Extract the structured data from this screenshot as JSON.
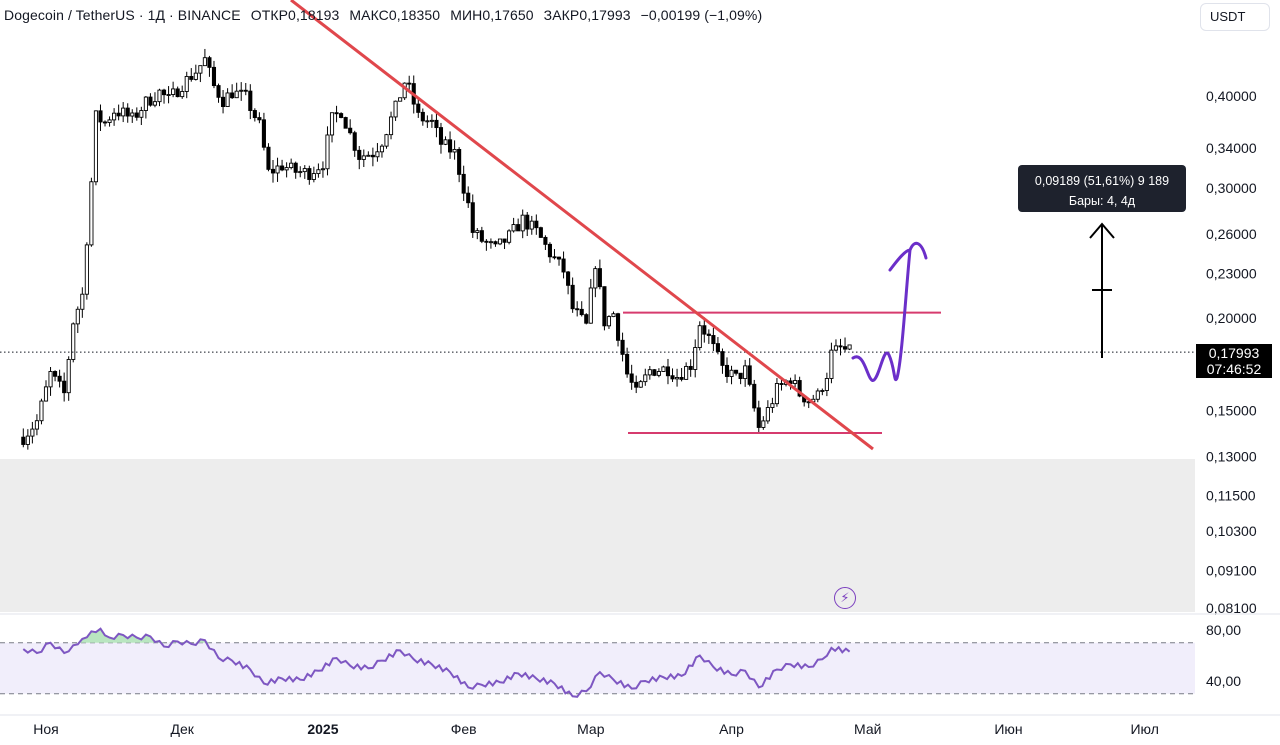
{
  "header": {
    "symbol": "Dogecoin / TetherUS · 1Д · BINANCE",
    "open": "ОТКР0,18193",
    "high": "МАКС0,18350",
    "low": "МИН0,17650",
    "close": "ЗАКР0,17993",
    "change": "−0,00199 (−1,09%)"
  },
  "currency_button": "USDT",
  "price_tag": {
    "price": "0,17993",
    "countdown": "07:46:52"
  },
  "measure": {
    "line1": "0,09189 (51,61%) 9 189",
    "line2": "Бары: 4, 4д"
  },
  "flash_icon": "lightning-icon",
  "colors": {
    "up": "#000000",
    "down": "#000000",
    "trendline": "#e0474c",
    "range_lines": "#d63b6e",
    "projection": "#6b2fc9",
    "rsi_line": "#7e57c2",
    "rsi_fill": "#f1eefb"
  },
  "chart_data": [
    {
      "type": "candlestick",
      "scale": "log",
      "y_axis_ticks": [
        "0,40000",
        "0,34000",
        "0,30000",
        "0,26000",
        "0,23000",
        "0,20000",
        "0,15000",
        "0,13000",
        "0,11500",
        "0,10300",
        "0,09100",
        "0,08100"
      ],
      "y_tick_values": [
        0.4,
        0.34,
        0.3,
        0.26,
        0.23,
        0.2,
        0.15,
        0.13,
        0.115,
        0.103,
        0.091,
        0.081
      ],
      "x_axis_ticks": [
        "Ноя",
        "Дек",
        "2025",
        "Фев",
        "Мар",
        "Апр",
        "Май",
        "Июн",
        "Июл"
      ],
      "x_tick_dates": [
        "2024-11-01",
        "2024-12-01",
        "2025-01-01",
        "2025-02-01",
        "2025-03-01",
        "2025-04-01",
        "2025-05-01",
        "2025-06-01",
        "2025-07-01"
      ],
      "close_series": [
        [
          "2024-10-27",
          0.138
        ],
        [
          "2024-10-30",
          0.145
        ],
        [
          "2024-11-02",
          0.168
        ],
        [
          "2024-11-05",
          0.158
        ],
        [
          "2024-11-07",
          0.198
        ],
        [
          "2024-11-09",
          0.215
        ],
        [
          "2024-11-11",
          0.306
        ],
        [
          "2024-11-12",
          0.375
        ],
        [
          "2024-11-14",
          0.368
        ],
        [
          "2024-11-16",
          0.382
        ],
        [
          "2024-11-18",
          0.379
        ],
        [
          "2024-11-20",
          0.372
        ],
        [
          "2024-11-23",
          0.392
        ],
        [
          "2024-11-26",
          0.405
        ],
        [
          "2024-11-28",
          0.395
        ],
        [
          "2024-12-01",
          0.415
        ],
        [
          "2024-12-04",
          0.432
        ],
        [
          "2024-12-06",
          0.448
        ],
        [
          "2024-12-08",
          0.412
        ],
        [
          "2024-12-10",
          0.395
        ],
        [
          "2024-12-12",
          0.405
        ],
        [
          "2024-12-15",
          0.398
        ],
        [
          "2024-12-18",
          0.365
        ],
        [
          "2024-12-20",
          0.315
        ],
        [
          "2024-12-23",
          0.322
        ],
        [
          "2024-12-26",
          0.316
        ],
        [
          "2024-12-29",
          0.315
        ],
        [
          "2025-01-01",
          0.325
        ],
        [
          "2025-01-03",
          0.372
        ],
        [
          "2025-01-05",
          0.382
        ],
        [
          "2025-01-07",
          0.355
        ],
        [
          "2025-01-09",
          0.332
        ],
        [
          "2025-01-12",
          0.335
        ],
        [
          "2025-01-14",
          0.348
        ],
        [
          "2025-01-17",
          0.385
        ],
        [
          "2025-01-19",
          0.418
        ],
        [
          "2025-01-20",
          0.408
        ],
        [
          "2025-01-22",
          0.375
        ],
        [
          "2025-01-25",
          0.368
        ],
        [
          "2025-01-27",
          0.345
        ],
        [
          "2025-01-30",
          0.335
        ],
        [
          "2025-02-02",
          0.285
        ],
        [
          "2025-02-03",
          0.262
        ],
        [
          "2025-02-05",
          0.255
        ],
        [
          "2025-02-08",
          0.248
        ],
        [
          "2025-02-11",
          0.258
        ],
        [
          "2025-02-14",
          0.272
        ],
        [
          "2025-02-17",
          0.262
        ],
        [
          "2025-02-20",
          0.245
        ],
        [
          "2025-02-23",
          0.232
        ],
        [
          "2025-02-25",
          0.206
        ],
        [
          "2025-02-28",
          0.195
        ],
        [
          "2025-03-02",
          0.238
        ],
        [
          "2025-03-04",
          0.198
        ],
        [
          "2025-03-06",
          0.203
        ],
        [
          "2025-03-09",
          0.168
        ],
        [
          "2025-03-11",
          0.158
        ],
        [
          "2025-03-14",
          0.17
        ],
        [
          "2025-03-18",
          0.171
        ],
        [
          "2025-03-20",
          0.167
        ],
        [
          "2025-03-23",
          0.173
        ],
        [
          "2025-03-25",
          0.197
        ],
        [
          "2025-03-27",
          0.188
        ],
        [
          "2025-03-30",
          0.171
        ],
        [
          "2025-04-02",
          0.166
        ],
        [
          "2025-04-04",
          0.17
        ],
        [
          "2025-04-07",
          0.142
        ],
        [
          "2025-04-09",
          0.15
        ],
        [
          "2025-04-11",
          0.16
        ],
        [
          "2025-04-14",
          0.166
        ],
        [
          "2025-04-16",
          0.158
        ],
        [
          "2025-04-18",
          0.155
        ],
        [
          "2025-04-20",
          0.157
        ],
        [
          "2025-04-22",
          0.168
        ],
        [
          "2025-04-23",
          0.179
        ],
        [
          "2025-04-25",
          0.182
        ],
        [
          "2025-04-27",
          0.18
        ]
      ],
      "horizontal_levels": [
        0.2035,
        0.1398
      ],
      "current_price": 0.17993
    },
    {
      "type": "line",
      "name": "RSI",
      "y_axis_ticks": [
        "80,00",
        "40,00"
      ],
      "band": [
        70,
        30
      ],
      "values": [
        [
          "2024-10-27",
          65
        ],
        [
          "2024-10-30",
          62
        ],
        [
          "2024-11-02",
          70
        ],
        [
          "2024-11-05",
          62
        ],
        [
          "2024-11-07",
          68
        ],
        [
          "2024-11-09",
          73
        ],
        [
          "2024-11-11",
          79
        ],
        [
          "2024-11-13",
          81
        ],
        [
          "2024-11-15",
          74
        ],
        [
          "2024-11-18",
          76
        ],
        [
          "2024-11-21",
          74
        ],
        [
          "2024-11-24",
          75
        ],
        [
          "2024-11-27",
          67
        ],
        [
          "2024-11-30",
          71
        ],
        [
          "2024-12-03",
          69
        ],
        [
          "2024-12-06",
          72
        ],
        [
          "2024-12-09",
          58
        ],
        [
          "2024-12-12",
          56
        ],
        [
          "2024-12-16",
          49
        ],
        [
          "2024-12-19",
          38
        ],
        [
          "2024-12-23",
          42
        ],
        [
          "2024-12-27",
          41
        ],
        [
          "2024-12-31",
          48
        ],
        [
          "2025-01-04",
          58
        ],
        [
          "2025-01-07",
          52
        ],
        [
          "2025-01-11",
          50
        ],
        [
          "2025-01-14",
          56
        ],
        [
          "2025-01-18",
          64
        ],
        [
          "2025-01-21",
          57
        ],
        [
          "2025-01-25",
          53
        ],
        [
          "2025-01-29",
          47
        ],
        [
          "2025-02-02",
          35
        ],
        [
          "2025-02-05",
          37
        ],
        [
          "2025-02-09",
          39
        ],
        [
          "2025-02-13",
          46
        ],
        [
          "2025-02-17",
          42
        ],
        [
          "2025-02-21",
          38
        ],
        [
          "2025-02-25",
          28
        ],
        [
          "2025-02-28",
          32
        ],
        [
          "2025-03-03",
          47
        ],
        [
          "2025-03-06",
          41
        ],
        [
          "2025-03-10",
          34
        ],
        [
          "2025-03-13",
          40
        ],
        [
          "2025-03-17",
          43
        ],
        [
          "2025-03-21",
          44
        ],
        [
          "2025-03-25",
          60
        ],
        [
          "2025-03-28",
          51
        ],
        [
          "2025-04-01",
          45
        ],
        [
          "2025-04-04",
          48
        ],
        [
          "2025-04-07",
          35
        ],
        [
          "2025-04-11",
          49
        ],
        [
          "2025-04-14",
          53
        ],
        [
          "2025-04-18",
          51
        ],
        [
          "2025-04-21",
          57
        ],
        [
          "2025-04-23",
          66
        ],
        [
          "2025-04-27",
          63
        ]
      ]
    }
  ]
}
